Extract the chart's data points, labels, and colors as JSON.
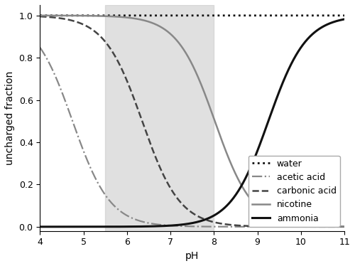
{
  "title": "",
  "xlabel": "pH",
  "ylabel": "uncharged fraction",
  "xlim": [
    4,
    11
  ],
  "ylim": [
    -0.02,
    1.05
  ],
  "ph_range": [
    4,
    11
  ],
  "shade_min": 5.5,
  "shade_max": 8.0,
  "shade_color": "#c8c8c8",
  "shade_alpha": 0.55,
  "substances": {
    "water": {
      "pKa": 15.7,
      "type": "acid",
      "color": "#111111",
      "linestyle": "dotted",
      "linewidth": 2.0,
      "label": "water"
    },
    "acetic_acid": {
      "pKa": 4.75,
      "type": "acid",
      "color": "#888888",
      "linestyle": "dashdot",
      "linewidth": 1.6,
      "label": "acetic acid"
    },
    "carbonic_acid": {
      "pKa": 6.35,
      "type": "acid",
      "color": "#444444",
      "linestyle": "dashed",
      "linewidth": 1.8,
      "label": "carbonic acid"
    },
    "nicotine": {
      "pKa": 8.02,
      "type": "acid",
      "color": "#888888",
      "linestyle": "solid",
      "linewidth": 1.8,
      "label": "nicotine"
    },
    "ammonia": {
      "pKa": 9.25,
      "type": "base",
      "color": "#111111",
      "linestyle": "solid",
      "linewidth": 2.2,
      "label": "ammonia"
    }
  },
  "legend_loc": "lower right",
  "legend_fontsize": 9,
  "tick_fontsize": 9,
  "label_fontsize": 10
}
